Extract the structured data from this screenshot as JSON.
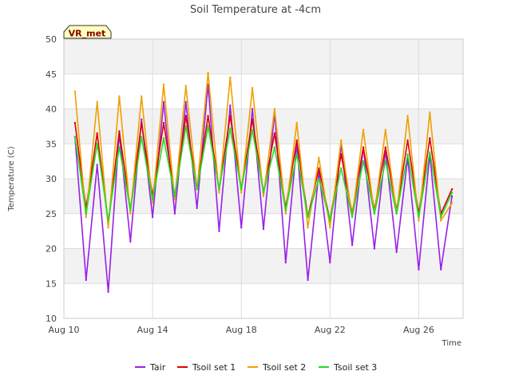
{
  "chart_data": {
    "type": "line",
    "title": "Soil Temperature at -4cm",
    "xlabel": "Time",
    "ylabel": "Temperature (C)",
    "badge": "VR_met",
    "ylim": [
      10,
      50
    ],
    "yticks": [
      10,
      15,
      20,
      25,
      30,
      35,
      40,
      45,
      50
    ],
    "xlim": [
      "2024-08-10",
      "2024-08-28"
    ],
    "xticks": [
      "Aug 10",
      "Aug 14",
      "Aug 18",
      "Aug 22",
      "Aug 26"
    ],
    "grid": true,
    "legend_position": "bottom",
    "x": [
      "2024-08-10T12:00",
      "2024-08-11T00:00",
      "2024-08-11T12:00",
      "2024-08-12T00:00",
      "2024-08-12T12:00",
      "2024-08-13T00:00",
      "2024-08-13T12:00",
      "2024-08-14T00:00",
      "2024-08-14T12:00",
      "2024-08-15T00:00",
      "2024-08-15T12:00",
      "2024-08-16T00:00",
      "2024-08-16T12:00",
      "2024-08-17T00:00",
      "2024-08-17T12:00",
      "2024-08-18T00:00",
      "2024-08-18T12:00",
      "2024-08-19T00:00",
      "2024-08-19T12:00",
      "2024-08-20T00:00",
      "2024-08-20T12:00",
      "2024-08-21T00:00",
      "2024-08-21T12:00",
      "2024-08-22T00:00",
      "2024-08-22T12:00",
      "2024-08-23T00:00",
      "2024-08-23T12:00",
      "2024-08-24T00:00",
      "2024-08-24T12:00",
      "2024-08-25T00:00",
      "2024-08-25T12:00",
      "2024-08-26T00:00",
      "2024-08-26T12:00",
      "2024-08-27T00:00",
      "2024-08-27T12:00"
    ],
    "series": [
      {
        "name": "Tair",
        "color": "#9a1fe8",
        "values": [
          36.0,
          15.5,
          32.0,
          13.8,
          36.5,
          21.0,
          38.5,
          24.5,
          41.0,
          25.0,
          41.0,
          25.8,
          43.5,
          22.5,
          40.5,
          23.0,
          40.0,
          22.8,
          39.5,
          18.0,
          35.0,
          15.5,
          31.0,
          18.0,
          35.0,
          20.5,
          34.5,
          20.0,
          34.0,
          19.5,
          33.0,
          17.0,
          33.5,
          17.0,
          27.5
        ]
      },
      {
        "name": "Tsoil set 1",
        "color": "#dd0000",
        "values": [
          38.0,
          25.8,
          36.5,
          23.5,
          36.8,
          25.5,
          38.0,
          27.5,
          38.0,
          27.5,
          39.0,
          28.5,
          39.0,
          28.5,
          39.0,
          28.5,
          38.5,
          28.0,
          36.5,
          25.8,
          35.5,
          24.5,
          31.5,
          24.0,
          33.5,
          25.0,
          34.5,
          25.5,
          34.5,
          25.5,
          35.5,
          25.0,
          35.8,
          25.0,
          28.5
        ]
      },
      {
        "name": "Tsoil set 2",
        "color": "#f0a000",
        "values": [
          42.5,
          24.5,
          41.0,
          23.0,
          41.8,
          25.0,
          41.8,
          26.5,
          43.5,
          27.0,
          43.3,
          28.5,
          45.2,
          28.0,
          44.5,
          28.0,
          43.0,
          27.5,
          40.0,
          25.0,
          38.0,
          23.0,
          33.0,
          23.0,
          35.5,
          24.5,
          37.0,
          25.0,
          37.0,
          25.0,
          39.0,
          24.0,
          39.5,
          24.0,
          26.5
        ]
      },
      {
        "name": "Tsoil set 3",
        "color": "#22dd22",
        "values": [
          36.0,
          25.0,
          35.0,
          24.0,
          34.5,
          25.5,
          36.0,
          27.0,
          35.8,
          27.5,
          37.5,
          28.5,
          37.5,
          28.5,
          37.2,
          28.5,
          37.0,
          28.0,
          34.5,
          25.5,
          33.5,
          24.5,
          30.0,
          24.0,
          31.5,
          24.5,
          32.5,
          25.0,
          32.5,
          25.0,
          33.5,
          24.5,
          33.8,
          24.5,
          28.0
        ]
      }
    ]
  }
}
